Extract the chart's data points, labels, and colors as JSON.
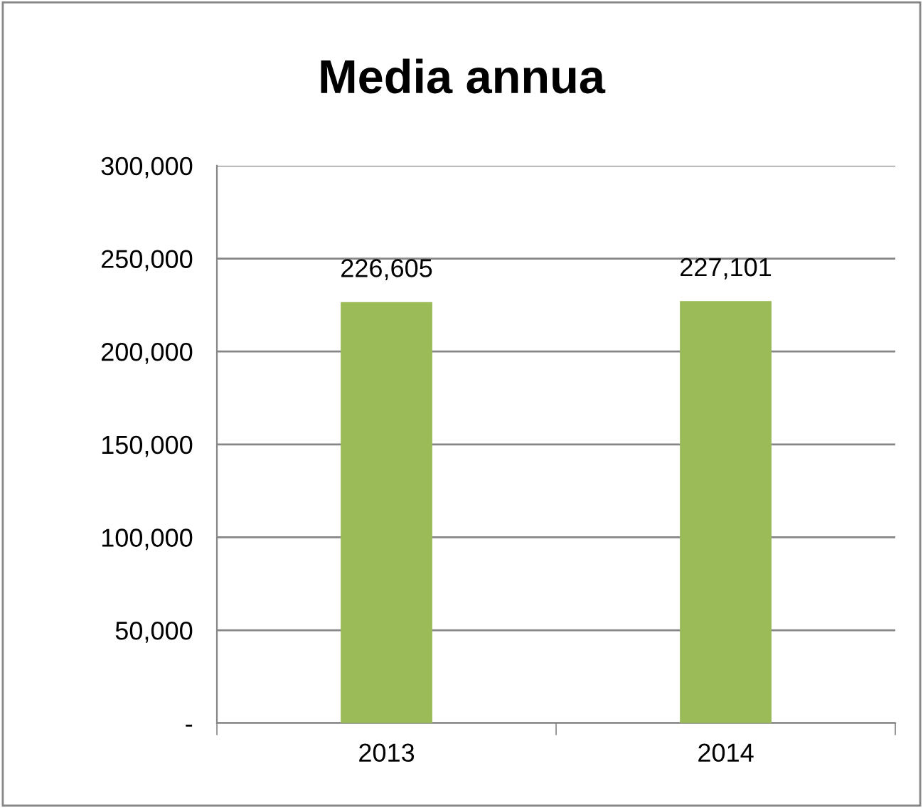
{
  "chart_data": {
    "type": "bar",
    "title": "Media annua",
    "categories": [
      "2013",
      "2014"
    ],
    "values": [
      226605,
      227101
    ],
    "value_labels": [
      "226,605",
      "227,101"
    ],
    "color": "#9bbb59",
    "ylim": [
      0,
      300000
    ],
    "yticks": [
      {
        "value": 0,
        "label": "-"
      },
      {
        "value": 50000,
        "label": "50,000"
      },
      {
        "value": 100000,
        "label": "100,000"
      },
      {
        "value": 150000,
        "label": "150,000"
      },
      {
        "value": 200000,
        "label": "200,000"
      },
      {
        "value": 250000,
        "label": "250,000"
      },
      {
        "value": 300000,
        "label": "300,000"
      }
    ],
    "grid": "y",
    "legend": false
  }
}
